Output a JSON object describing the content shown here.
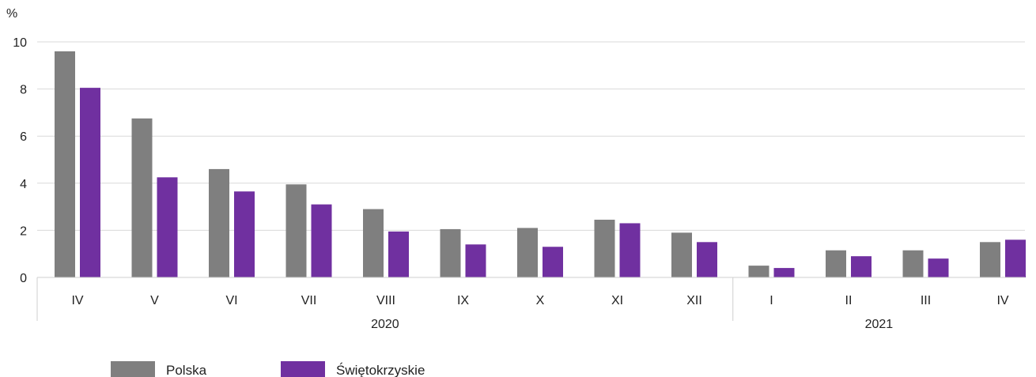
{
  "chart_data": {
    "type": "bar",
    "unit_label": "%",
    "ylim": [
      0,
      10
    ],
    "yticks": [
      "0",
      "2",
      "4",
      "6",
      "8",
      "10"
    ],
    "categories": [
      "IV",
      "V",
      "VI",
      "VII",
      "VIII",
      "IX",
      "X",
      "XI",
      "XII",
      "I",
      "II",
      "III",
      "IV"
    ],
    "groups": [
      {
        "label": "2020",
        "count": 9
      },
      {
        "label": "2021",
        "count": 4
      }
    ],
    "series": [
      {
        "name": "Polska",
        "color": "#7f7f7f",
        "values": [
          9.6,
          6.75,
          4.6,
          3.95,
          2.9,
          2.05,
          2.1,
          2.45,
          1.9,
          0.5,
          1.15,
          1.15,
          1.5
        ]
      },
      {
        "name": "Świętokrzyskie",
        "color": "#7030a0",
        "values": [
          8.05,
          4.25,
          3.65,
          3.1,
          1.95,
          1.4,
          1.3,
          2.3,
          1.5,
          0.4,
          0.9,
          0.8,
          1.6
        ]
      }
    ],
    "grid": true,
    "legend_position": "bottom-left"
  }
}
